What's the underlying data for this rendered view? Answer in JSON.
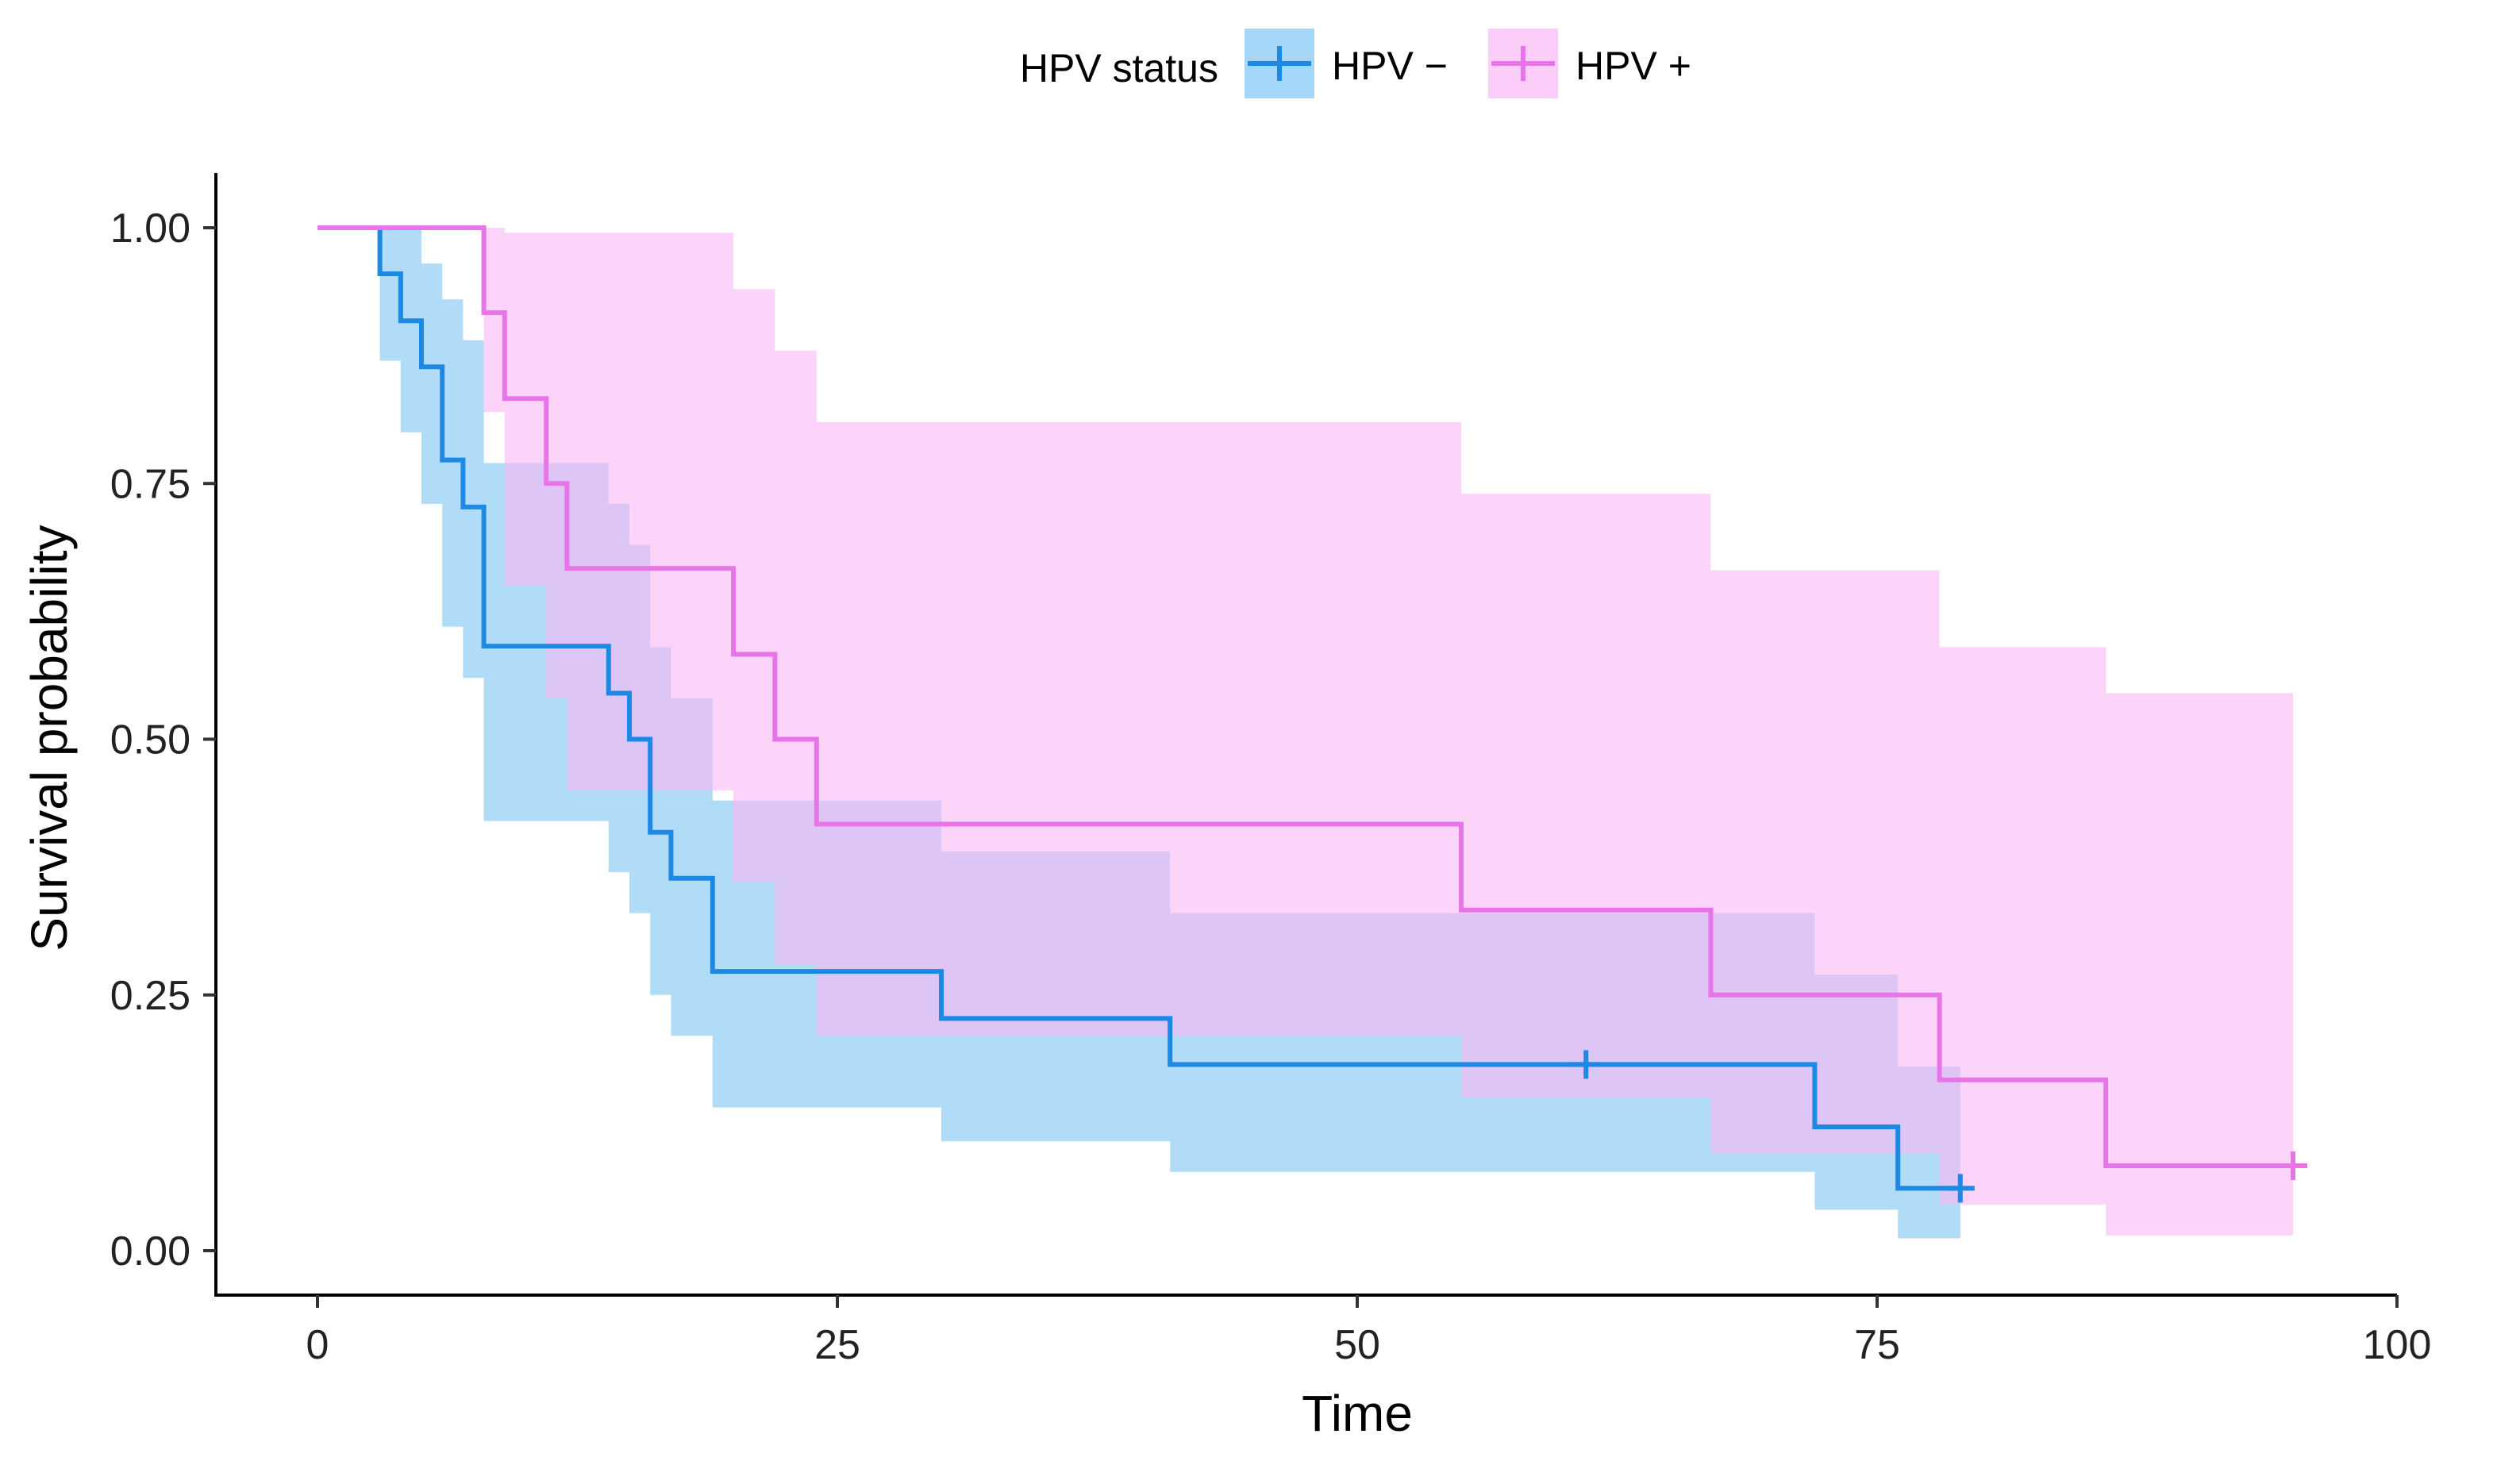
{
  "chart_data": {
    "type": "line",
    "subtype": "kaplan-meier step curve with confidence bands",
    "xlabel": "Time",
    "ylabel": "Survival probability",
    "xlim": [
      0,
      100
    ],
    "ylim": [
      0,
      1
    ],
    "x_ticks": [
      "0",
      "25",
      "50",
      "75",
      "100"
    ],
    "y_ticks": [
      "0.00",
      "0.25",
      "0.50",
      "0.75",
      "1.00"
    ],
    "grid": false,
    "legend": {
      "position": "top",
      "title": "HPV status",
      "entries": [
        "HPV −",
        "HPV +"
      ]
    },
    "series": [
      {
        "name": "HPV −",
        "color": "#1e88e5",
        "band_color": "#7cc4f4",
        "x": [
          0,
          3,
          4,
          5,
          6,
          7,
          8,
          14,
          15,
          16,
          17,
          19,
          30,
          41,
          72,
          76,
          79
        ],
        "y": [
          1.0,
          0.955,
          0.909,
          0.864,
          0.773,
          0.727,
          0.591,
          0.545,
          0.5,
          0.409,
          0.364,
          0.273,
          0.227,
          0.182,
          0.121,
          0.061,
          0.061
        ],
        "lower": [
          1.0,
          0.87,
          0.8,
          0.73,
          0.61,
          0.56,
          0.42,
          0.37,
          0.33,
          0.25,
          0.21,
          0.14,
          0.107,
          0.077,
          0.04,
          0.012,
          0.012
        ],
        "upper": [
          1.0,
          1.0,
          1.0,
          0.965,
          0.93,
          0.89,
          0.77,
          0.73,
          0.69,
          0.59,
          0.54,
          0.44,
          0.39,
          0.33,
          0.27,
          0.18,
          0.18
        ],
        "censored": [
          {
            "x": 61,
            "y": 0.182
          },
          {
            "x": 79,
            "y": 0.061
          }
        ]
      },
      {
        "name": "HPV +",
        "color": "#e875e8",
        "band_color": "#fbb8f5",
        "x": [
          0,
          8,
          9,
          11,
          12,
          20,
          22,
          24,
          55,
          67,
          78,
          86,
          95
        ],
        "y": [
          1.0,
          0.917,
          0.833,
          0.75,
          0.667,
          0.583,
          0.5,
          0.417,
          0.333,
          0.25,
          0.167,
          0.083,
          0.083
        ],
        "lower": [
          1.0,
          0.82,
          0.65,
          0.54,
          0.45,
          0.36,
          0.28,
          0.21,
          0.15,
          0.095,
          0.045,
          0.015,
          0.015
        ],
        "upper": [
          1.0,
          1.0,
          0.995,
          0.995,
          0.995,
          0.94,
          0.88,
          0.81,
          0.74,
          0.665,
          0.59,
          0.545,
          0.545
        ],
        "censored": [
          {
            "x": 95,
            "y": 0.083
          }
        ]
      }
    ]
  }
}
